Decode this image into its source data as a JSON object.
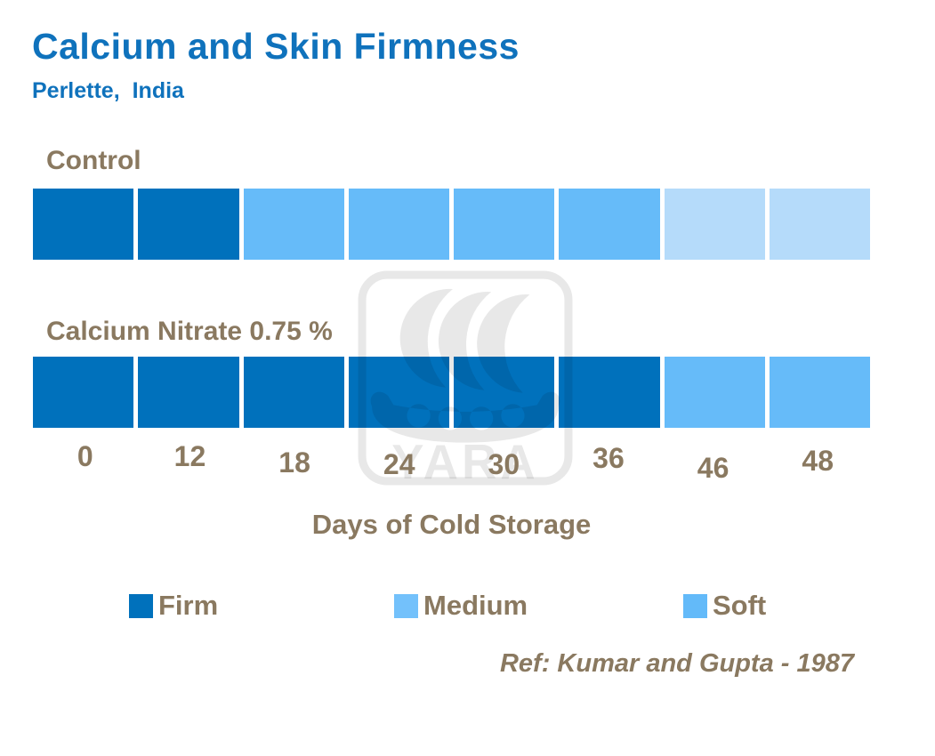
{
  "reference": "Ref: Kumar and Gupta - 1987",
  "watermark": "YARA",
  "colors": {
    "title_blue": "#0F72BC",
    "text_brown": "#8A7960",
    "firm": "#0071BC",
    "medium": "#66BBF9",
    "soft": "#B5DBFA"
  },
  "chart_data": {
    "type": "heatmap",
    "title": "Calcium and Skin Firmness",
    "subtitle": "Perlette, India",
    "x": [
      "0",
      "12",
      "18",
      "24",
      "30",
      "36",
      "46",
      "48"
    ],
    "xlabel": "Days of Cold Storage",
    "series": [
      {
        "name": "Control",
        "values": [
          "Firm",
          "Firm",
          "Medium",
          "Medium",
          "Medium",
          "Medium",
          "Soft",
          "Soft"
        ]
      },
      {
        "name": "Calcium Nitrate 0.75 %",
        "values": [
          "Firm",
          "Firm",
          "Firm",
          "Firm",
          "Firm",
          "Firm",
          "Medium",
          "Medium"
        ]
      }
    ],
    "legend": [
      {
        "label": "Firm",
        "color": "#0071BC"
      },
      {
        "label": "Medium",
        "color": "#73C1FB"
      },
      {
        "label": "Soft",
        "color": "#63BAF9"
      }
    ],
    "legend_position": "bottom",
    "grid": false
  }
}
